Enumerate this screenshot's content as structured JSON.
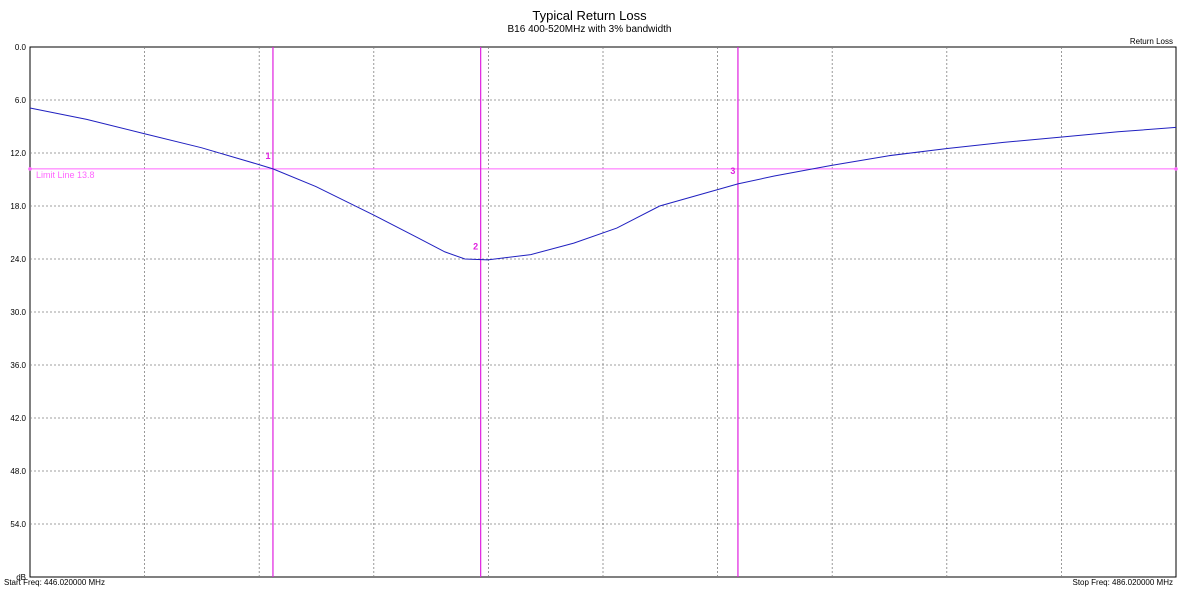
{
  "chart_data": {
    "type": "line",
    "title": "Typical Return Loss",
    "subtitle": "B16  400-520MHz with 3% bandwidth",
    "series_label": "Return Loss",
    "yunit": "dB",
    "ylim": [
      0,
      60
    ],
    "yticks": [
      "0.0",
      "6.0",
      "12.0",
      "18.0",
      "24.0",
      "30.0",
      "36.0",
      "42.0",
      "48.0",
      "54.0"
    ],
    "xlim": [
      446.02,
      486.02
    ],
    "start_freq_label": "Start Freq: 446.020000 MHz",
    "stop_freq_label": "Stop Freq: 486.020000 MHz",
    "grid": true,
    "x_grid_divisions": 10,
    "limit_line": {
      "label": "Limit Line 13.8",
      "value": 13.8,
      "color": "#ff66ff"
    },
    "line_color": "#2020c0",
    "marker_color": "#e020e0",
    "markers": [
      {
        "label": "1",
        "x": 454.5
      },
      {
        "label": "2",
        "x": 461.75
      },
      {
        "label": "3",
        "x": 470.73
      }
    ],
    "series": [
      {
        "x": [
          446.02,
          448.0,
          450.0,
          452.0,
          454.0,
          454.5,
          456.0,
          458.0,
          459.5,
          460.5,
          461.2,
          462.0,
          463.5,
          465.0,
          466.5,
          468.0,
          470.73,
          472.0,
          474.0,
          476.0,
          478.0,
          480.0,
          482.0,
          484.0,
          486.02
        ],
        "y": [
          6.9,
          8.2,
          9.8,
          11.4,
          13.3,
          13.8,
          15.8,
          19.0,
          21.5,
          23.2,
          24.0,
          24.1,
          23.5,
          22.2,
          20.5,
          18.0,
          15.5,
          14.6,
          13.4,
          12.3,
          11.5,
          10.8,
          10.2,
          9.6,
          9.1
        ]
      }
    ]
  }
}
